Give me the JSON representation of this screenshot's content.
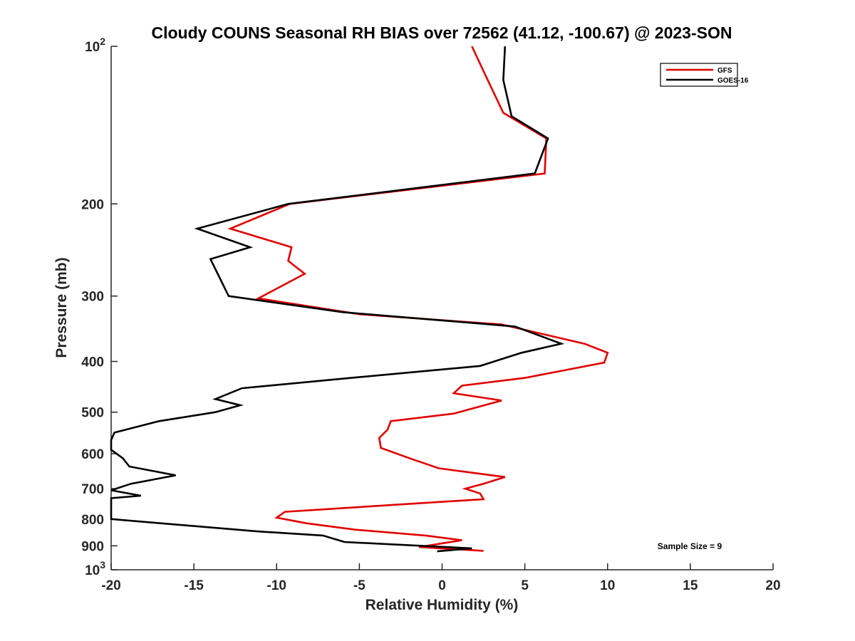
{
  "chart_data": {
    "type": "line",
    "title": "Cloudy COUNS Seasonal RH BIAS over 72562 (41.12, -100.67) @ 2023-SON",
    "xlabel": "Relative Humidity (%)",
    "ylabel": "Pressure (mb)",
    "xlim": [
      -20,
      20
    ],
    "ylim": [
      100,
      1000
    ],
    "yscale": "log",
    "yreversed": true,
    "xticks": [
      -20,
      -15,
      -10,
      -5,
      0,
      5,
      10,
      15,
      20
    ],
    "xtick_labels": [
      "-20",
      "-15",
      "-10",
      "-5",
      "0",
      "5",
      "10",
      "15",
      "20"
    ],
    "yticks": [
      100,
      200,
      300,
      400,
      500,
      600,
      700,
      800,
      900,
      1000
    ],
    "ytick_labels": [
      {
        "base": "10",
        "exp": "2"
      },
      {
        "base": "200",
        "exp": ""
      },
      {
        "base": "300",
        "exp": ""
      },
      {
        "base": "400",
        "exp": ""
      },
      {
        "base": "500",
        "exp": ""
      },
      {
        "base": "600",
        "exp": ""
      },
      {
        "base": "700",
        "exp": ""
      },
      {
        "base": "800",
        "exp": ""
      },
      {
        "base": "900",
        "exp": ""
      },
      {
        "base": "10",
        "exp": "3"
      }
    ],
    "legend_position": "top-right",
    "annotation": "Sample Size = 9",
    "series": [
      {
        "name": "GFS",
        "color": "#e00000",
        "points": [
          [
            1.8,
            100
          ],
          [
            2.7,
            115
          ],
          [
            3.7,
            134
          ],
          [
            6.3,
            150
          ],
          [
            6.2,
            175
          ],
          [
            -9.2,
            200
          ],
          [
            -12.8,
            223
          ],
          [
            -9.1,
            242
          ],
          [
            -9.3,
            257
          ],
          [
            -8.3,
            272
          ],
          [
            -11.1,
            303
          ],
          [
            -5.0,
            325
          ],
          [
            3.6,
            340
          ],
          [
            8.6,
            370
          ],
          [
            10.0,
            385
          ],
          [
            9.8,
            402
          ],
          [
            5.0,
            430
          ],
          [
            1.2,
            445
          ],
          [
            0.7,
            460
          ],
          [
            3.6,
            475
          ],
          [
            0.7,
            503
          ],
          [
            -3.1,
            520
          ],
          [
            -3.3,
            540
          ],
          [
            -3.8,
            560
          ],
          [
            -3.7,
            585
          ],
          [
            -1.8,
            615
          ],
          [
            -0.2,
            640
          ],
          [
            3.8,
            665
          ],
          [
            2.5,
            685
          ],
          [
            1.4,
            700
          ],
          [
            2.3,
            715
          ],
          [
            2.5,
            733
          ],
          [
            -9.5,
            775
          ],
          [
            -10.0,
            795
          ],
          [
            -8.2,
            815
          ],
          [
            -5.3,
            838
          ],
          [
            -1.0,
            860
          ],
          [
            1.2,
            878
          ],
          [
            -1.4,
            905
          ],
          [
            2.5,
            920
          ]
        ]
      },
      {
        "name": "GOES-16",
        "color": "#000000",
        "points": [
          [
            3.8,
            100
          ],
          [
            3.7,
            116
          ],
          [
            4.2,
            136
          ],
          [
            6.4,
            150
          ],
          [
            5.6,
            175
          ],
          [
            -9.3,
            200
          ],
          [
            -14.8,
            223
          ],
          [
            -11.6,
            242
          ],
          [
            -14.0,
            255
          ],
          [
            -12.9,
            300
          ],
          [
            -6.0,
            322
          ],
          [
            4.4,
            343
          ],
          [
            7.2,
            370
          ],
          [
            4.8,
            385
          ],
          [
            2.3,
            408
          ],
          [
            -5.5,
            430
          ],
          [
            -12.1,
            450
          ],
          [
            -13.7,
            472
          ],
          [
            -12.2,
            485
          ],
          [
            -13.7,
            500
          ],
          [
            -17.1,
            520
          ],
          [
            -19.8,
            547
          ],
          [
            -20.0,
            565
          ],
          [
            -20.0,
            590
          ],
          [
            -19.3,
            612
          ],
          [
            -18.9,
            635
          ],
          [
            -16.1,
            660
          ],
          [
            -18.8,
            685
          ],
          [
            -20.0,
            705
          ],
          [
            -18.2,
            722
          ],
          [
            -20.0,
            730
          ],
          [
            -20.0,
            800
          ],
          [
            -11.1,
            845
          ],
          [
            -7.2,
            860
          ],
          [
            -5.9,
            885
          ],
          [
            1.8,
            910
          ],
          [
            -0.3,
            922
          ]
        ]
      }
    ]
  }
}
